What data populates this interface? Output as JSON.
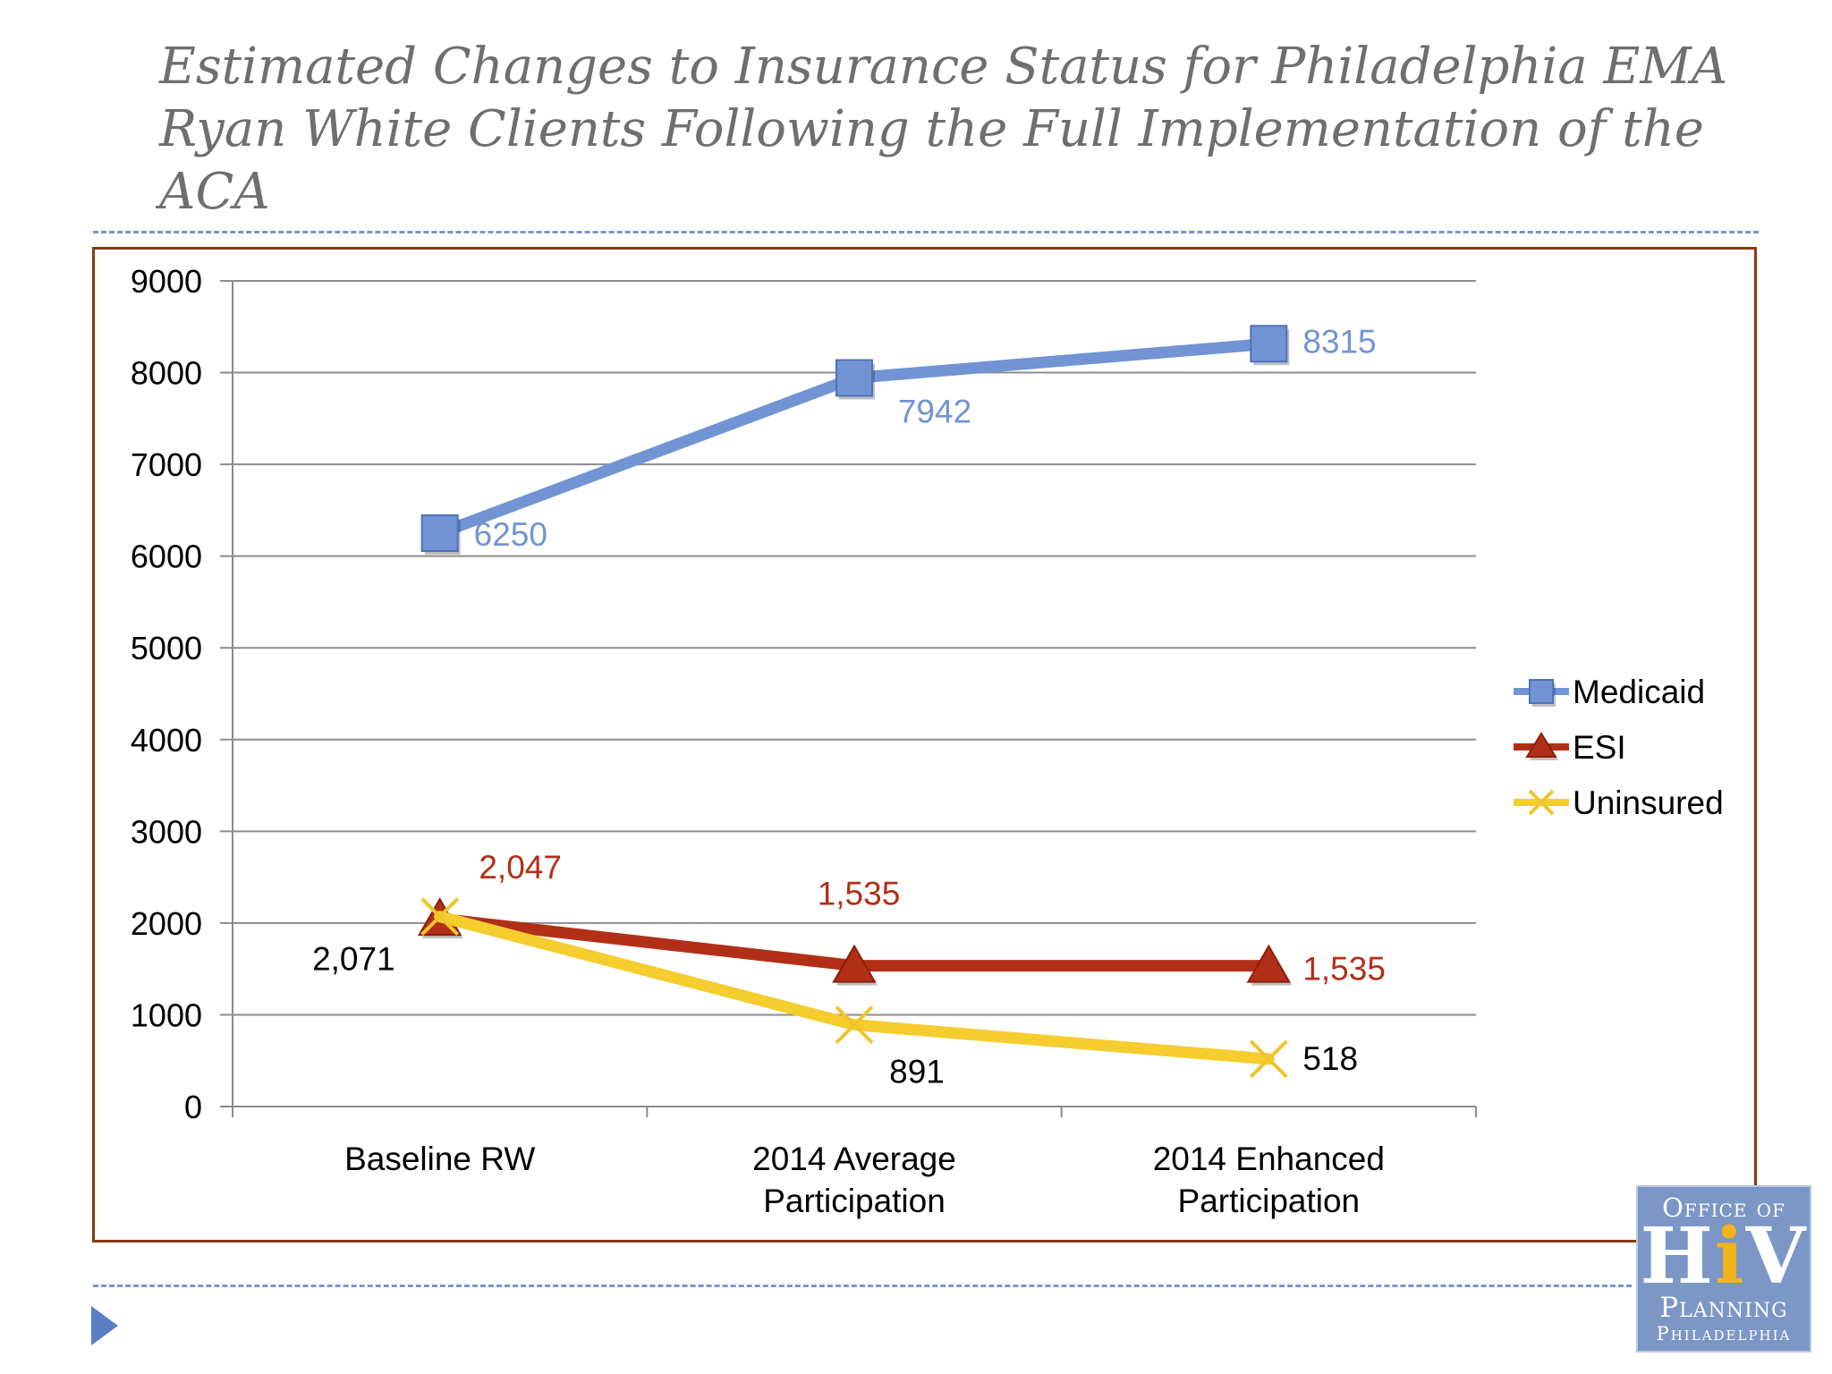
{
  "slide": {
    "title_lines": [
      "Estimated Changes to Insurance Status for Philadelphia EMA",
      "Ryan White Clients Following the Full Implementation of the",
      "ACA"
    ],
    "logo": {
      "line1": "Office of",
      "line2_a": "H",
      "line2_b": "i",
      "line2_c": "V",
      "line3": "Planning",
      "line4": "Philadelphia"
    }
  },
  "chart_data": {
    "type": "line",
    "categories": [
      [
        "Baseline RW"
      ],
      [
        "2014  Average",
        "Participation"
      ],
      [
        "2014 Enhanced",
        "Participation"
      ]
    ],
    "ylim": [
      0,
      9000
    ],
    "yticks": [
      0,
      1000,
      2000,
      3000,
      4000,
      5000,
      6000,
      7000,
      8000,
      9000
    ],
    "grid": true,
    "legend_position": "right",
    "series": [
      {
        "name": "Medicaid",
        "values": [
          6250,
          7942,
          8315
        ],
        "labels": [
          "6250",
          "7942",
          "8315"
        ],
        "color": "#7294d4",
        "marker": "square"
      },
      {
        "name": "ESI",
        "values": [
          2047,
          1535,
          1535
        ],
        "labels": [
          "2,047",
          "1,535",
          "1,535"
        ],
        "color": "#b22f17",
        "marker": "triangle"
      },
      {
        "name": "Uninsured",
        "values": [
          2071,
          891,
          518
        ],
        "labels": [
          "2,071",
          "891",
          "518"
        ],
        "color": "#f5cd2f",
        "marker": "x"
      }
    ]
  }
}
